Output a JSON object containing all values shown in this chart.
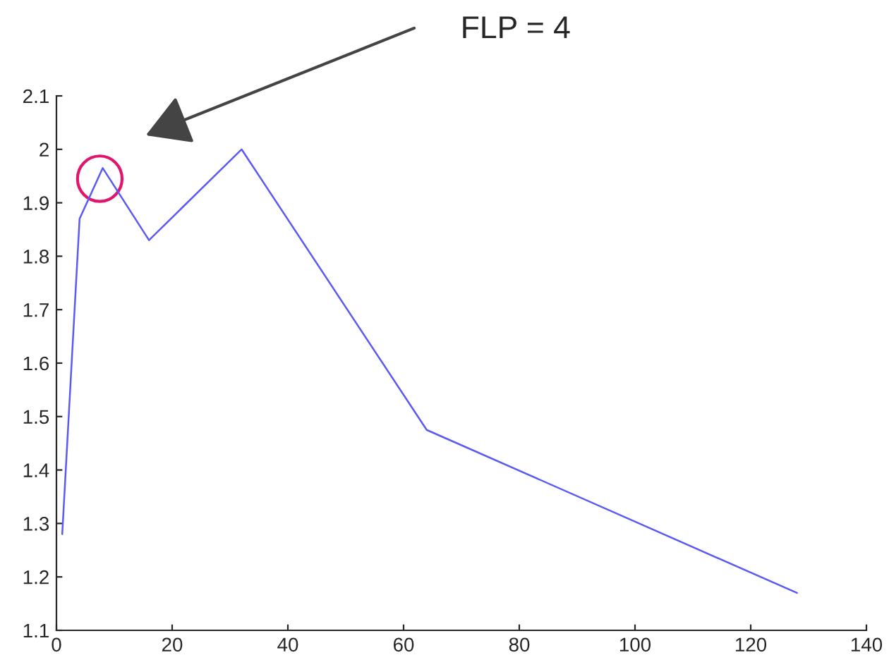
{
  "chart_data": {
    "type": "line",
    "x": [
      1,
      4,
      8,
      16,
      32,
      64,
      128
    ],
    "series": [
      {
        "color": "#5a5af5",
        "values": [
          1.28,
          1.87,
          1.965,
          1.83,
          2.0,
          1.475,
          1.17
        ]
      }
    ],
    "xlim": [
      0,
      140
    ],
    "xticks": [
      0,
      20,
      40,
      60,
      80,
      100,
      120,
      140
    ],
    "ylim": [
      1.1,
      2.1
    ],
    "yticks": [
      1.1,
      1.2,
      1.3,
      1.4,
      1.5,
      1.6,
      1.7,
      1.8,
      1.9,
      2,
      2.1
    ],
    "grid": false,
    "legend": false,
    "marker": "none",
    "line_style": "solid",
    "annotations": [
      "FLP = 4"
    ]
  }
}
